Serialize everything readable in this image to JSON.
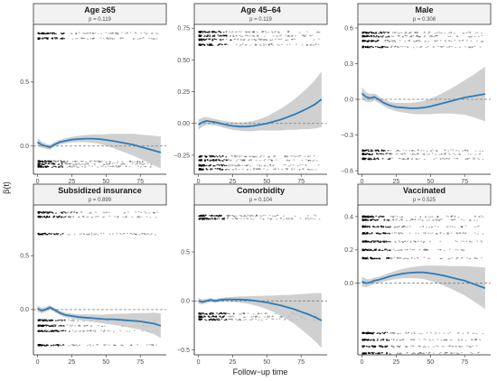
{
  "figure": {
    "ylabel": "β(t)",
    "xlabel": "Follow−up time",
    "colors": {
      "line": "#2b7bba",
      "band": "#c8c8c8",
      "points": "#000000",
      "strip_bg": "#f2f2f2"
    }
  },
  "chart_data": [
    {
      "type": "line",
      "title": "Age ≥65",
      "subtitle": "p = 0.119",
      "xlim": [
        -3,
        94
      ],
      "ylim": [
        -0.22,
        0.95
      ],
      "xticks": [
        0,
        25,
        50,
        75
      ],
      "yticks": [
        0.0,
        0.5
      ],
      "ytick_labels": [
        "0.0",
        "0.5"
      ],
      "ref_y": 0,
      "residual_bands": [
        0.88,
        0.84,
        -0.12,
        -0.14,
        -0.16
      ],
      "fit": {
        "x": [
          0,
          3,
          6,
          9,
          12,
          16,
          20,
          25,
          30,
          35,
          40,
          45,
          50,
          55,
          60,
          65,
          70,
          75,
          80,
          85,
          90
        ],
        "y": [
          0.03,
          0.01,
          0.0,
          -0.01,
          0.01,
          0.03,
          0.04,
          0.05,
          0.055,
          0.058,
          0.058,
          0.055,
          0.048,
          0.04,
          0.03,
          0.02,
          0.01,
          -0.005,
          -0.02,
          -0.035,
          -0.05
        ]
      },
      "band_halfwidth": [
        0.03,
        0.025,
        0.02,
        0.02,
        0.018,
        0.018,
        0.02,
        0.022,
        0.025,
        0.028,
        0.032,
        0.037,
        0.045,
        0.055,
        0.065,
        0.075,
        0.085,
        0.095,
        0.105,
        0.115,
        0.125
      ]
    },
    {
      "type": "line",
      "title": "Age 45–64",
      "subtitle": "p = 0.119",
      "xlim": [
        -3,
        94
      ],
      "ylim": [
        -0.4,
        0.78
      ],
      "xticks": [
        0,
        25,
        50,
        75
      ],
      "yticks": [
        -0.25,
        0.0,
        0.25,
        0.5,
        0.75
      ],
      "ytick_labels": [
        "−0.25",
        "0.00",
        "0.25",
        "0.50",
        "0.75"
      ],
      "ref_y": 0,
      "residual_bands": [
        0.72,
        0.69,
        0.66,
        0.62,
        -0.26,
        -0.29,
        -0.33,
        -0.36
      ],
      "fit": {
        "x": [
          0,
          3,
          6,
          9,
          12,
          16,
          20,
          25,
          30,
          35,
          40,
          45,
          50,
          55,
          60,
          65,
          70,
          75,
          80,
          85,
          90
        ],
        "y": [
          -0.01,
          0.01,
          0.02,
          0.015,
          0.01,
          0.0,
          -0.01,
          -0.02,
          -0.025,
          -0.025,
          -0.02,
          -0.01,
          0.0,
          0.015,
          0.03,
          0.05,
          0.07,
          0.095,
          0.12,
          0.15,
          0.19
        ]
      },
      "band_halfwidth": [
        0.04,
        0.035,
        0.03,
        0.028,
        0.026,
        0.026,
        0.028,
        0.03,
        0.032,
        0.035,
        0.04,
        0.045,
        0.055,
        0.07,
        0.085,
        0.1,
        0.12,
        0.14,
        0.165,
        0.19,
        0.22
      ]
    },
    {
      "type": "line",
      "title": "Male",
      "subtitle": "p = 0.308",
      "xlim": [
        -3,
        94
      ],
      "ylim": [
        -0.63,
        0.63
      ],
      "xticks": [
        0,
        25,
        50,
        75
      ],
      "yticks": [
        -0.6,
        -0.3,
        0.0,
        0.3,
        0.6
      ],
      "ytick_labels": [
        "−0.6",
        "−0.3",
        "0.0",
        "0.3",
        "0.6"
      ],
      "ref_y": 0,
      "residual_bands": [
        0.56,
        0.53,
        0.49,
        0.44,
        -0.43,
        -0.46,
        -0.5
      ],
      "fit": {
        "x": [
          0,
          3,
          6,
          9,
          12,
          16,
          20,
          25,
          30,
          35,
          40,
          45,
          50,
          55,
          60,
          65,
          70,
          75,
          80,
          85,
          90
        ],
        "y": [
          0.05,
          0.02,
          0.01,
          0.02,
          0.0,
          -0.03,
          -0.05,
          -0.065,
          -0.07,
          -0.075,
          -0.075,
          -0.07,
          -0.06,
          -0.045,
          -0.03,
          -0.015,
          0.0,
          0.015,
          0.025,
          0.035,
          0.045
        ]
      },
      "band_halfwidth": [
        0.05,
        0.04,
        0.035,
        0.03,
        0.028,
        0.028,
        0.03,
        0.035,
        0.04,
        0.045,
        0.05,
        0.055,
        0.065,
        0.075,
        0.09,
        0.105,
        0.125,
        0.145,
        0.17,
        0.2,
        0.23
      ]
    },
    {
      "type": "line",
      "title": "Subsidized insurance",
      "subtitle": "p = 0.899",
      "xlim": [
        -3,
        94
      ],
      "ylim": [
        -0.42,
        0.97
      ],
      "xticks": [
        0,
        25,
        50,
        75
      ],
      "yticks": [
        0.0,
        0.5
      ],
      "ytick_labels": [
        "0.0",
        "0.5"
      ],
      "ref_y": 0,
      "residual_bands": [
        0.9,
        0.86,
        0.7,
        -0.1,
        -0.15,
        -0.2,
        -0.33
      ],
      "fit": {
        "x": [
          0,
          3,
          6,
          9,
          12,
          16,
          20,
          25,
          30,
          35,
          40,
          45,
          50,
          55,
          60,
          65,
          70,
          75,
          80,
          85,
          90
        ],
        "y": [
          0.01,
          -0.01,
          0.0,
          0.02,
          0.0,
          -0.03,
          -0.05,
          -0.06,
          -0.07,
          -0.075,
          -0.08,
          -0.085,
          -0.09,
          -0.09,
          -0.095,
          -0.1,
          -0.105,
          -0.11,
          -0.12,
          -0.13,
          -0.15
        ]
      },
      "band_halfwidth": [
        0.03,
        0.025,
        0.022,
        0.02,
        0.02,
        0.02,
        0.022,
        0.024,
        0.026,
        0.03,
        0.034,
        0.038,
        0.044,
        0.05,
        0.056,
        0.062,
        0.07,
        0.078,
        0.088,
        0.1,
        0.115
      ]
    },
    {
      "type": "line",
      "title": "Comorbidity",
      "subtitle": "p = 0.104",
      "xlim": [
        -3,
        94
      ],
      "ylim": [
        -0.55,
        0.98
      ],
      "xticks": [
        0,
        25,
        50,
        75
      ],
      "yticks": [
        -0.5,
        0.0,
        0.5
      ],
      "ytick_labels": [
        "−0.5",
        "0.0",
        "0.5"
      ],
      "ref_y": 0,
      "residual_bands": [
        0.87,
        0.84,
        -0.13,
        -0.16,
        -0.19
      ],
      "fit": {
        "x": [
          0,
          3,
          6,
          9,
          12,
          16,
          20,
          25,
          30,
          35,
          40,
          45,
          50,
          55,
          60,
          65,
          70,
          75,
          80,
          85,
          90
        ],
        "y": [
          0.0,
          -0.01,
          0.0,
          0.01,
          0.0,
          0.01,
          0.015,
          0.015,
          0.015,
          0.01,
          0.005,
          -0.005,
          -0.015,
          -0.03,
          -0.045,
          -0.065,
          -0.085,
          -0.11,
          -0.135,
          -0.165,
          -0.2
        ]
      },
      "band_halfwidth": [
        0.03,
        0.025,
        0.022,
        0.02,
        0.02,
        0.02,
        0.022,
        0.026,
        0.03,
        0.036,
        0.045,
        0.055,
        0.07,
        0.085,
        0.105,
        0.125,
        0.15,
        0.18,
        0.21,
        0.245,
        0.28
      ]
    },
    {
      "type": "line",
      "title": "Vaccinated",
      "subtitle": "p = 0.525",
      "xlim": [
        -3,
        94
      ],
      "ylim": [
        -0.43,
        0.47
      ],
      "xticks": [
        0,
        25,
        50,
        75
      ],
      "yticks": [
        0.0,
        0.2,
        0.4
      ],
      "ytick_labels": [
        "0.0",
        "0.2",
        "0.4"
      ],
      "ref_y": 0,
      "residual_bands": [
        0.4,
        0.38,
        0.34,
        0.3,
        0.25,
        0.2,
        0.15,
        -0.3,
        -0.34,
        -0.38,
        -0.42
      ],
      "fit": {
        "x": [
          0,
          3,
          6,
          9,
          12,
          16,
          20,
          25,
          30,
          35,
          40,
          45,
          50,
          55,
          60,
          65,
          70,
          75,
          80,
          85,
          90
        ],
        "y": [
          0.01,
          0.0,
          0.005,
          0.015,
          0.02,
          0.03,
          0.04,
          0.05,
          0.058,
          0.063,
          0.065,
          0.065,
          0.06,
          0.053,
          0.045,
          0.035,
          0.025,
          0.015,
          0.0,
          -0.015,
          -0.03
        ]
      },
      "band_halfwidth": [
        0.03,
        0.025,
        0.02,
        0.018,
        0.018,
        0.02,
        0.022,
        0.025,
        0.028,
        0.032,
        0.036,
        0.04,
        0.046,
        0.052,
        0.06,
        0.068,
        0.078,
        0.088,
        0.1,
        0.112,
        0.125
      ]
    }
  ]
}
